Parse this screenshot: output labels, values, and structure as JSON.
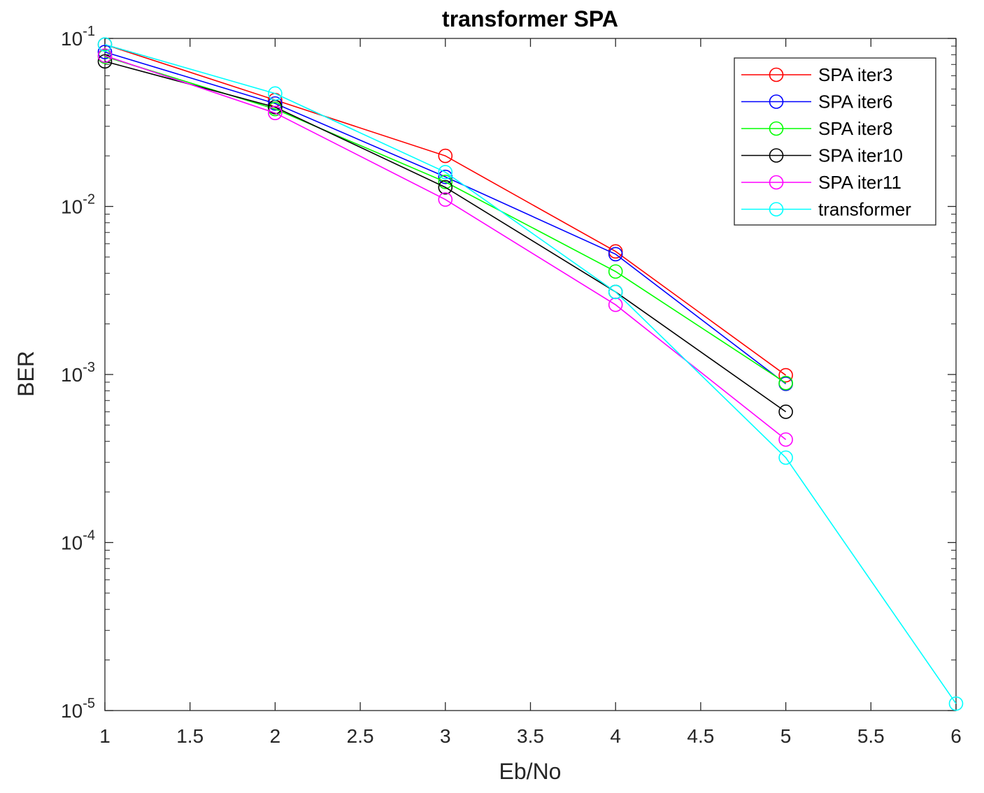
{
  "chart_data": {
    "type": "line",
    "title": "transformer SPA",
    "xlabel": "Eb/No",
    "ylabel": "BER",
    "xlim": [
      1,
      6
    ],
    "ylim": [
      1e-05,
      0.1
    ],
    "yscale": "log",
    "grid": false,
    "legend_position": "top-right",
    "x_ticks": [
      "1",
      "1.5",
      "2",
      "2.5",
      "3",
      "3.5",
      "4",
      "4.5",
      "5",
      "5.5",
      "6"
    ],
    "x_tick_values": [
      1,
      1.5,
      2,
      2.5,
      3,
      3.5,
      4,
      4.5,
      5,
      5.5,
      6
    ],
    "y_ticks": [
      {
        "base": "10",
        "exp": "-1",
        "value": 0.1
      },
      {
        "base": "10",
        "exp": "-2",
        "value": 0.01
      },
      {
        "base": "10",
        "exp": "-3",
        "value": 0.001
      },
      {
        "base": "10",
        "exp": "-4",
        "value": 0.0001
      },
      {
        "base": "10",
        "exp": "-5",
        "value": 1e-05
      }
    ],
    "series": [
      {
        "name": "SPA iter3",
        "color": "#ff0000",
        "x": [
          1,
          2,
          3,
          4,
          5
        ],
        "y": [
          0.092,
          0.043,
          0.02,
          0.0054,
          0.00099
        ]
      },
      {
        "name": "SPA iter6",
        "color": "#0000ff",
        "x": [
          1,
          2,
          3,
          4,
          5
        ],
        "y": [
          0.083,
          0.041,
          0.015,
          0.0052,
          0.00088
        ]
      },
      {
        "name": "SPA iter8",
        "color": "#00ff00",
        "x": [
          1,
          2,
          3,
          4,
          5
        ],
        "y": [
          0.078,
          0.038,
          0.014,
          0.0041,
          0.00089
        ]
      },
      {
        "name": "SPA iter10",
        "color": "#000000",
        "x": [
          1,
          2,
          3,
          4,
          5
        ],
        "y": [
          0.073,
          0.039,
          0.013,
          0.0031,
          0.0006
        ]
      },
      {
        "name": "SPA iter11",
        "color": "#ff00ff",
        "x": [
          1,
          2,
          3,
          4,
          5
        ],
        "y": [
          0.079,
          0.036,
          0.011,
          0.0026,
          0.00041
        ]
      },
      {
        "name": "transformer",
        "color": "#00ffff",
        "x": [
          1,
          2,
          3,
          4,
          5,
          6
        ],
        "y": [
          0.092,
          0.047,
          0.016,
          0.0031,
          0.00032,
          1.1e-05
        ]
      }
    ]
  }
}
